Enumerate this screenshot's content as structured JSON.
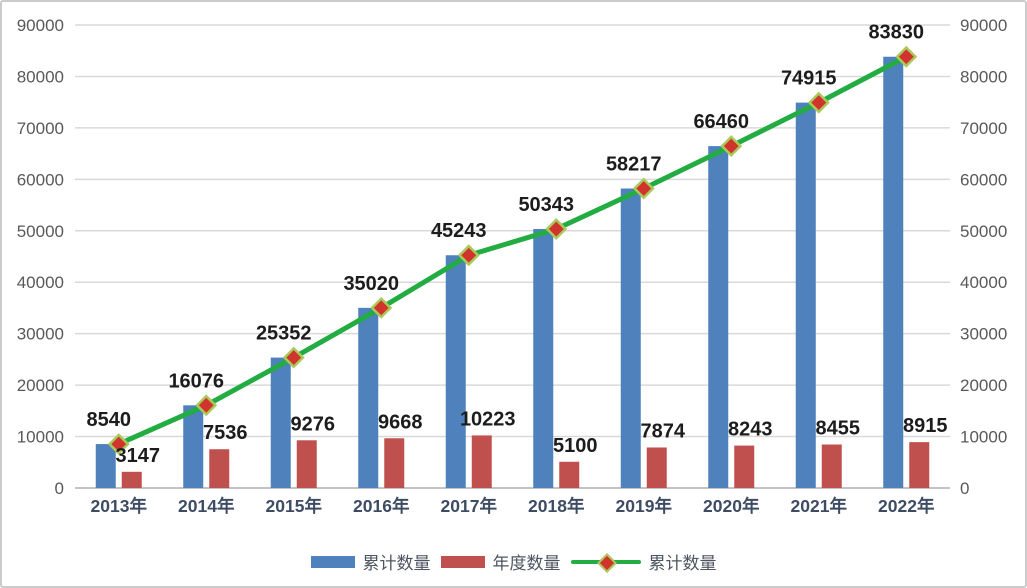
{
  "chart_data": {
    "type": "combo-bar-line",
    "title": "",
    "categories": [
      "2013年",
      "2014年",
      "2015年",
      "2016年",
      "2017年",
      "2018年",
      "2019年",
      "2020年",
      "2021年",
      "2022年"
    ],
    "series": [
      {
        "name": "累计数量",
        "type": "bar",
        "color": "#4F81BD",
        "values": [
          8540,
          16076,
          25352,
          35020,
          45243,
          50343,
          58217,
          66460,
          74915,
          83830
        ],
        "data_labels": [
          8540,
          16076,
          25352,
          35020,
          45243,
          50343,
          58217,
          66460,
          74915,
          83830
        ]
      },
      {
        "name": "年度数量",
        "type": "bar",
        "color": "#C0504D",
        "values": [
          3147,
          7536,
          9276,
          9668,
          10223,
          5100,
          7874,
          8243,
          8455,
          8915
        ],
        "data_labels": [
          3147,
          7536,
          9276,
          9668,
          10223,
          5100,
          7874,
          8243,
          8455,
          8915
        ]
      },
      {
        "name": "累计数量",
        "type": "line",
        "color": "#22AC41",
        "marker": {
          "shape": "diamond",
          "fill": "#D1342C",
          "stroke": "#ABC95B"
        },
        "values": [
          8540,
          16076,
          25352,
          35020,
          45243,
          50343,
          58217,
          66460,
          74915,
          83830
        ]
      }
    ],
    "y_axis_left": {
      "min": 0,
      "max": 90000,
      "step": 10000,
      "ticks": [
        "0",
        "10000",
        "20000",
        "30000",
        "40000",
        "50000",
        "60000",
        "70000",
        "80000",
        "90000"
      ]
    },
    "y_axis_right": {
      "min": 0,
      "max": 90000,
      "step": 10000,
      "ticks": [
        "0",
        "10000",
        "20000",
        "30000",
        "40000",
        "50000",
        "60000",
        "70000",
        "80000",
        "90000"
      ]
    },
    "grid": {
      "show": true,
      "color": "#D9D9D9",
      "axis_line_color": "#C3C3C3"
    },
    "legend": {
      "position": "bottom",
      "items": [
        {
          "label": "累计数量",
          "swatch": "bar",
          "color": "#4F81BD"
        },
        {
          "label": "年度数量",
          "swatch": "bar",
          "color": "#C0504D"
        },
        {
          "label": "累计数量",
          "swatch": "line-diamond",
          "color": "#22AC41"
        }
      ]
    }
  },
  "styles": {
    "background": "#FFFFFF",
    "border_color": "#CBCBCB",
    "data_label_color": "#1C1C1C",
    "tick_label_color": "#595959",
    "category_label_color": "#3E4C63",
    "legend_text_color": "#4D5560"
  }
}
